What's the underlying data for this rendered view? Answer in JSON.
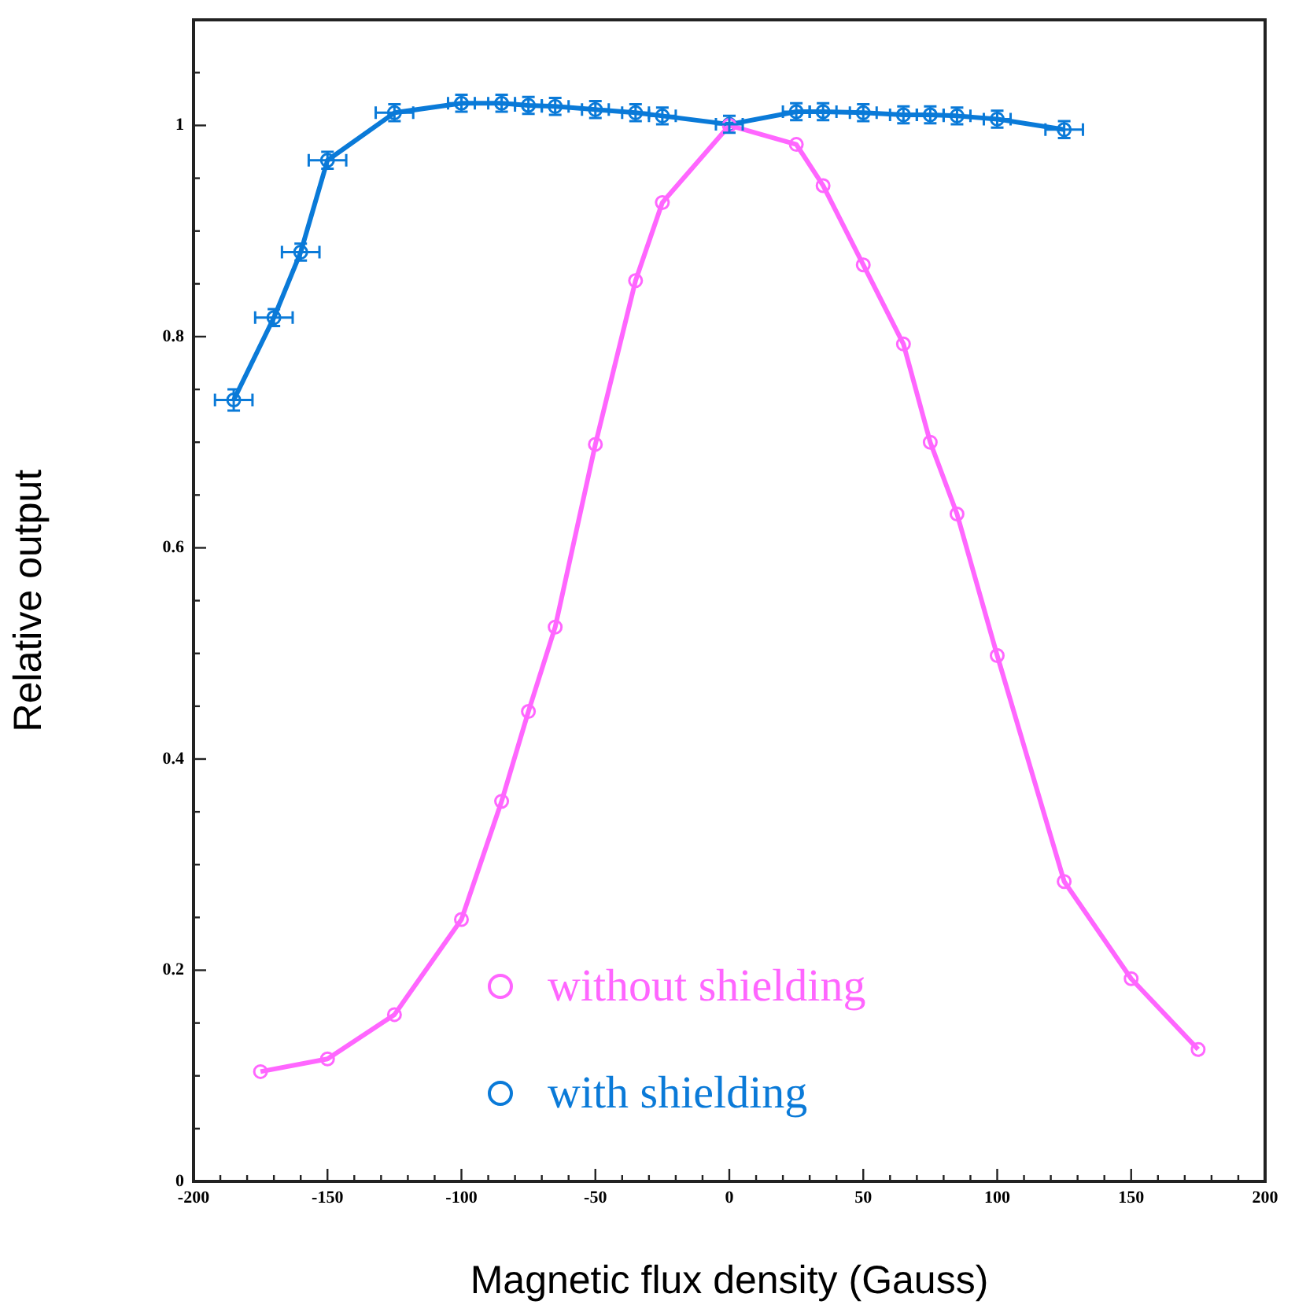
{
  "chart_data": {
    "type": "line",
    "xlabel": "Magnetic flux density (Gauss)",
    "ylabel": "Relative output",
    "xlim": [
      -200,
      200
    ],
    "xticks": [
      -200,
      {
        "value": -190,
        "label": null
      },
      {
        "value": -180,
        "label": null
      },
      {
        "value": -170,
        "label": null
      },
      {
        "value": -160,
        "label": null
      },
      -150,
      {
        "value": -140,
        "label": null
      },
      {
        "value": -130,
        "label": null
      },
      {
        "value": -120,
        "label": null
      },
      {
        "value": -110,
        "label": null
      },
      -100,
      {
        "value": -90,
        "label": null
      },
      {
        "value": -80,
        "label": null
      },
      {
        "value": -70,
        "label": null
      },
      {
        "value": -60,
        "label": null
      },
      -50,
      {
        "value": -40,
        "label": null
      },
      {
        "value": -30,
        "label": null
      },
      {
        "value": -20,
        "label": null
      },
      {
        "value": -10,
        "label": null
      },
      0,
      {
        "value": 10,
        "label": null
      },
      {
        "value": 20,
        "label": null
      },
      {
        "value": 30,
        "label": null
      },
      {
        "value": 40,
        "label": null
      },
      50,
      {
        "value": 60,
        "label": null
      },
      {
        "value": 70,
        "label": null
      },
      {
        "value": 80,
        "label": null
      },
      {
        "value": 90,
        "label": null
      },
      100,
      {
        "value": 110,
        "label": null
      },
      {
        "value": 120,
        "label": null
      },
      {
        "value": 130,
        "label": null
      },
      {
        "value": 140,
        "label": null
      },
      150,
      {
        "value": 160,
        "label": null
      },
      {
        "value": 170,
        "label": null
      },
      {
        "value": 180,
        "label": null
      },
      {
        "value": 190,
        "label": null
      },
      200
    ],
    "ylim": [
      0,
      1.1
    ],
    "yticks": [
      0,
      {
        "value": 0.05,
        "label": null
      },
      {
        "value": 0.1,
        "label": null
      },
      {
        "value": 0.15,
        "label": null
      },
      0.2,
      {
        "value": 0.25,
        "label": null
      },
      {
        "value": 0.3,
        "label": null
      },
      {
        "value": 0.35,
        "label": null
      },
      0.4,
      {
        "value": 0.45,
        "label": null
      },
      {
        "value": 0.5,
        "label": null
      },
      {
        "value": 0.55,
        "label": null
      },
      0.6,
      {
        "value": 0.65,
        "label": null
      },
      {
        "value": 0.7,
        "label": null
      },
      {
        "value": 0.75,
        "label": null
      },
      0.8,
      {
        "value": 0.85,
        "label": null
      },
      {
        "value": 0.9,
        "label": null
      },
      {
        "value": 0.95,
        "label": null
      },
      1,
      {
        "value": 1.05,
        "label": null
      }
    ],
    "grid": false,
    "legend": "bottom",
    "marker": "circle",
    "line_style": "solid",
    "series": [
      {
        "name": "without shielding",
        "color": "#ff66ff",
        "x": [
          -175,
          -150,
          -125,
          -100,
          -85,
          -75,
          -65,
          -50,
          -35,
          -25,
          0,
          25,
          35,
          50,
          65,
          75,
          85,
          100,
          125,
          150,
          175
        ],
        "values": [
          0.104,
          0.116,
          0.158,
          0.248,
          0.36,
          0.445,
          0.525,
          0.698,
          0.853,
          0.927,
          1.0,
          0.982,
          0.943,
          0.868,
          0.793,
          0.7,
          0.632,
          0.498,
          0.284,
          0.192,
          0.125
        ]
      },
      {
        "name": "with shielding",
        "color": "#0a7ad8",
        "x": [
          -185,
          -170,
          -160,
          -150,
          -125,
          -100,
          -85,
          -75,
          -65,
          -50,
          -35,
          -25,
          0,
          25,
          35,
          50,
          65,
          75,
          85,
          100,
          125
        ],
        "values": [
          0.74,
          0.818,
          0.88,
          0.967,
          1.012,
          1.021,
          1.021,
          1.019,
          1.018,
          1.015,
          1.012,
          1.009,
          1.001,
          1.013,
          1.013,
          1.012,
          1.01,
          1.01,
          1.009,
          1.006,
          0.996
        ],
        "errors": [
          0.01,
          0.008,
          0.008,
          0.008,
          0.008,
          0.008,
          0.008,
          0.008,
          0.008,
          0.008,
          0.008,
          0.008,
          0.008,
          0.008,
          0.008,
          0.008,
          0.008,
          0.008,
          0.008,
          0.008,
          0.008
        ],
        "xerrors": [
          7,
          7,
          7,
          7,
          7,
          5,
          5,
          5,
          5,
          5,
          5,
          5,
          5,
          5,
          5,
          5,
          5,
          5,
          5,
          5,
          7
        ]
      }
    ]
  }
}
